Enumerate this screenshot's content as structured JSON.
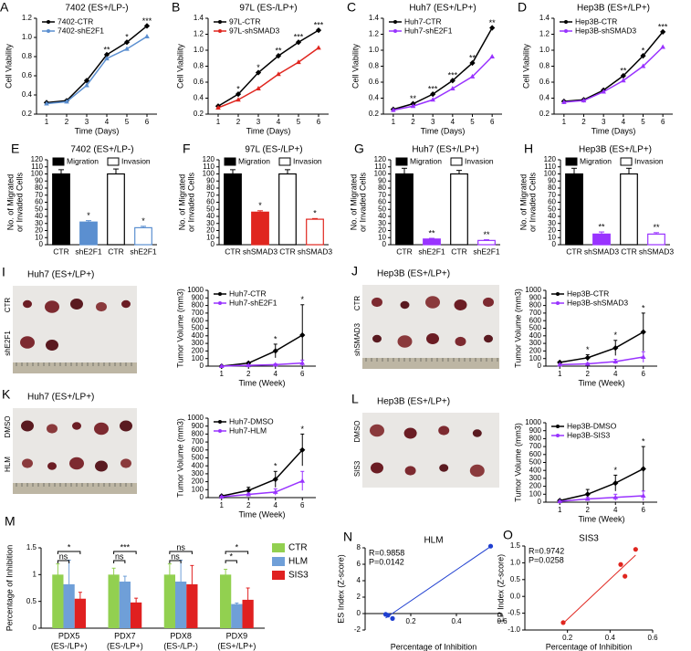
{
  "chart_data": [
    {
      "type": "line",
      "panel": "A",
      "title": "7402 (ES+/LP-)",
      "xlabel": "Time (Days)",
      "ylabel": "Cell Viability",
      "categories": [
        "1",
        "2",
        "3",
        "4",
        "5",
        "6"
      ],
      "ylim": [
        0.2,
        1.2
      ],
      "yticks": [
        0.2,
        0.4,
        0.6,
        0.8,
        {
          "value": 1,
          "label": "1.0"
        },
        1.2
      ],
      "series": [
        {
          "name": "7402-CTR",
          "color": "#000000",
          "values": [
            0.32,
            0.34,
            0.55,
            0.82,
            0.95,
            1.12
          ]
        },
        {
          "name": "7402-shE2F1",
          "color": "#5b8fd0",
          "values": [
            0.31,
            0.33,
            0.5,
            0.78,
            0.88,
            1.01
          ]
        }
      ],
      "annotations": [
        null,
        null,
        null,
        "**",
        "*",
        "***"
      ]
    },
    {
      "type": "line",
      "panel": "B",
      "title": "97L (ES-/LP+)",
      "xlabel": "Time (Days)",
      "ylabel": "Cell Viability",
      "categories": [
        "1",
        "2",
        "3",
        "4",
        "5",
        "6"
      ],
      "ylim": [
        0.2,
        1.4
      ],
      "yticks": [
        0.2,
        0.4,
        0.6,
        0.8,
        {
          "value": 1,
          "label": "1.0"
        },
        1.2,
        1.4
      ],
      "series": [
        {
          "name": "97L-CTR",
          "color": "#000000",
          "values": [
            0.3,
            0.45,
            0.72,
            0.93,
            1.1,
            1.25
          ]
        },
        {
          "name": "97L-shSMAD3",
          "color": "#e0261f",
          "values": [
            0.28,
            0.38,
            0.52,
            0.7,
            0.85,
            1.03
          ]
        }
      ],
      "annotations": [
        null,
        "*",
        "*",
        "**",
        "***",
        "***"
      ]
    },
    {
      "type": "line",
      "panel": "C",
      "title": "Huh7 (ES+/LP+)",
      "xlabel": "Time (Days)",
      "ylabel": "Cell Viability",
      "categories": [
        "1",
        "2",
        "3",
        "4",
        "5",
        "6"
      ],
      "ylim": [
        0.2,
        1.4
      ],
      "yticks": [
        0.2,
        0.4,
        0.6,
        0.8,
        {
          "value": 1,
          "label": "1.0"
        },
        1.2,
        1.4
      ],
      "series": [
        {
          "name": "Huh7-CTR",
          "color": "#000000",
          "values": [
            0.26,
            0.33,
            0.45,
            0.62,
            0.84,
            1.28
          ]
        },
        {
          "name": "Huh7-shE2F1",
          "color": "#9933ff",
          "values": [
            0.25,
            0.3,
            0.38,
            0.52,
            0.67,
            0.92
          ]
        }
      ],
      "annotations": [
        null,
        "**",
        "***",
        "***",
        "**",
        "**"
      ]
    },
    {
      "type": "line",
      "panel": "D",
      "title": "Hep3B (ES+/LP+)",
      "xlabel": "Time (Days)",
      "ylabel": "Cell Viability",
      "categories": [
        "1",
        "2",
        "3",
        "4",
        "5",
        "6"
      ],
      "ylim": [
        0.2,
        1.4
      ],
      "yticks": [
        0.2,
        0.4,
        0.6,
        0.8,
        {
          "value": 1,
          "label": "1.0"
        },
        1.2,
        1.4
      ],
      "series": [
        {
          "name": "Hep3B-CTR",
          "color": "#000000",
          "values": [
            0.36,
            0.38,
            0.5,
            0.68,
            0.93,
            1.23
          ]
        },
        {
          "name": "Hep3B-shSMAD3",
          "color": "#9933ff",
          "values": [
            0.35,
            0.37,
            0.48,
            0.62,
            0.8,
            1.04
          ]
        }
      ],
      "annotations": [
        null,
        null,
        null,
        "**",
        "*",
        "***"
      ]
    },
    {
      "type": "bar",
      "panel": "E",
      "title": "7402 (ES+/LP-)",
      "ylabel": [
        "No. of Migrated",
        "or Invaded Cells"
      ],
      "ylim": [
        0,
        120
      ],
      "yticks": [
        0,
        10,
        20,
        30,
        40,
        50,
        60,
        70,
        80,
        90,
        100,
        110,
        120
      ],
      "colors": [
        "#000000",
        "#5b8fd0"
      ],
      "series": [
        {
          "name": "Migration",
          "categories": [
            "CTR",
            "shE2F1"
          ],
          "values": [
            100,
            32
          ],
          "errors": [
            6,
            2
          ],
          "annotations": [
            null,
            "*"
          ]
        },
        {
          "name": "Invasion",
          "categories": [
            "CTR",
            "shE2F1"
          ],
          "values": [
            100,
            24
          ],
          "errors": [
            7,
            2
          ],
          "annotations": [
            null,
            "*"
          ]
        }
      ]
    },
    {
      "type": "bar",
      "panel": "F",
      "title": "97L (ES-/LP+)",
      "ylabel": [
        "No. of Migrated",
        "or Invaded Cells"
      ],
      "ylim": [
        0,
        120
      ],
      "yticks": [
        0,
        10,
        20,
        30,
        40,
        50,
        60,
        70,
        80,
        90,
        100,
        110,
        120
      ],
      "colors": [
        "#000000",
        "#e0261f"
      ],
      "series": [
        {
          "name": "Migration",
          "categories": [
            "CTR",
            "shSMAD3"
          ],
          "values": [
            100,
            46
          ],
          "errors": [
            6,
            2
          ],
          "annotations": [
            null,
            "*"
          ]
        },
        {
          "name": "Invasion",
          "categories": [
            "CTR",
            "shSMAD3"
          ],
          "values": [
            100,
            36
          ],
          "errors": [
            6,
            1
          ],
          "annotations": [
            null,
            "*"
          ]
        }
      ]
    },
    {
      "type": "bar",
      "panel": "G",
      "title": "Huh7 (ES+/LP+)",
      "ylabel": [
        "No. of Migrated",
        "or Invaded Cells"
      ],
      "ylim": [
        0,
        120
      ],
      "yticks": [
        0,
        10,
        20,
        30,
        40,
        50,
        60,
        70,
        80,
        90,
        100,
        110,
        120
      ],
      "colors": [
        "#000000",
        "#9933ff"
      ],
      "series": [
        {
          "name": "Migration",
          "categories": [
            "CTR",
            "shE2F1"
          ],
          "values": [
            100,
            8
          ],
          "errors": [
            8,
            1
          ],
          "annotations": [
            null,
            "**"
          ]
        },
        {
          "name": "Invasion",
          "categories": [
            "CTR",
            "shE2F1"
          ],
          "values": [
            100,
            6
          ],
          "errors": [
            5,
            1
          ],
          "annotations": [
            null,
            "**"
          ]
        }
      ]
    },
    {
      "type": "bar",
      "panel": "H",
      "title": "Hep3B (ES+/LP+)",
      "ylabel": [
        "No. of Migrated",
        "or Invaded Cells"
      ],
      "ylim": [
        0,
        120
      ],
      "yticks": [
        0,
        10,
        20,
        30,
        40,
        50,
        60,
        70,
        80,
        90,
        100,
        110,
        120
      ],
      "colors": [
        "#000000",
        "#9933ff"
      ],
      "series": [
        {
          "name": "Migration",
          "categories": [
            "CTR",
            "shSMAD3"
          ],
          "values": [
            100,
            15
          ],
          "errors": [
            8,
            3
          ],
          "annotations": [
            null,
            "**"
          ]
        },
        {
          "name": "Invasion",
          "categories": [
            "CTR",
            "shSMAD3"
          ],
          "values": [
            100,
            15
          ],
          "errors": [
            8,
            2
          ],
          "annotations": [
            null,
            "**"
          ]
        }
      ]
    },
    {
      "type": "line",
      "xlabel": "Time (Week)",
      "ylabel": "Tumor Volume (mm3)",
      "categories": [
        "1",
        "2",
        "4",
        "6"
      ],
      "ylim": [
        0,
        1000
      ],
      "yticks": [
        0,
        100,
        200,
        300,
        400,
        500,
        600,
        700,
        800,
        900,
        1000
      ],
      "series": [
        {
          "name": "Huh7-CTR",
          "color": "#000000",
          "values": [
            0,
            40,
            200,
            410
          ],
          "errors": [
            0,
            10,
            90,
            400
          ]
        },
        {
          "name": "Huh7-shE2F1",
          "color": "#9933ff",
          "values": [
            0,
            10,
            20,
            40
          ],
          "errors": [
            0,
            5,
            10,
            40
          ]
        }
      ],
      "annotations": [
        null,
        null,
        "*",
        "*"
      ]
    },
    {
      "type": "line",
      "xlabel": "Time (Week)",
      "ylabel": "Tumor Volume (mm3)",
      "categories": [
        "1",
        "2",
        "4",
        "6"
      ],
      "ylim": [
        0,
        1000
      ],
      "yticks": [
        0,
        100,
        200,
        300,
        400,
        500,
        600,
        700,
        800,
        900,
        1000
      ],
      "series": [
        {
          "name": "Hep3B-CTR",
          "color": "#000000",
          "values": [
            50,
            110,
            240,
            450
          ],
          "errors": [
            10,
            40,
            100,
            250
          ]
        },
        {
          "name": "Hep3B-shSMAD3",
          "color": "#9933ff",
          "values": [
            20,
            30,
            60,
            120
          ],
          "errors": [
            5,
            10,
            30,
            70
          ]
        }
      ],
      "annotations": [
        null,
        "*",
        "*",
        "*"
      ]
    },
    {
      "type": "line",
      "xlabel": "Time (Week)",
      "ylabel": "Tumor Volume (mm3)",
      "categories": [
        "1",
        "2",
        "4",
        "6"
      ],
      "ylim": [
        0,
        1000
      ],
      "yticks": [
        0,
        100,
        200,
        300,
        400,
        500,
        600,
        700,
        800,
        900,
        1000
      ],
      "series": [
        {
          "name": "Huh7-DMSO",
          "color": "#000000",
          "values": [
            20,
            90,
            230,
            600
          ],
          "errors": [
            10,
            40,
            100,
            200
          ]
        },
        {
          "name": "Huh7-HLM",
          "color": "#9933ff",
          "values": [
            10,
            40,
            70,
            210
          ],
          "errors": [
            5,
            15,
            40,
            120
          ]
        }
      ],
      "annotations": [
        null,
        null,
        "*",
        "*"
      ]
    },
    {
      "type": "line",
      "xlabel": "Time (Week)",
      "ylabel": "Tumor Volume (mm3)",
      "categories": [
        "1",
        "2",
        "4",
        "6"
      ],
      "ylim": [
        0,
        1000
      ],
      "yticks": [
        0,
        100,
        200,
        300,
        400,
        500,
        600,
        700,
        800,
        900,
        1000
      ],
      "series": [
        {
          "name": "Hep3B-DMSO",
          "color": "#000000",
          "values": [
            20,
            100,
            240,
            420
          ],
          "errors": [
            10,
            60,
            100,
            280
          ]
        },
        {
          "name": "Hep3B-SIS3",
          "color": "#9933ff",
          "values": [
            10,
            40,
            60,
            80
          ],
          "errors": [
            5,
            20,
            40,
            60
          ]
        }
      ],
      "annotations": [
        null,
        null,
        "*",
        "*"
      ]
    },
    {
      "type": "groupedbar",
      "panel": "M",
      "ylabel": "Percentage of Inhibition",
      "categories": [
        "PDX5",
        "PDX7",
        "PDX8",
        "PDX9"
      ],
      "subcategories": [
        "(ES-/LP+)",
        "(ES-/LP+)",
        "(ES-/LP-)",
        "(ES+/LP+)"
      ],
      "ylim": [
        0,
        1.5
      ],
      "yticks": [
        0,
        0.5,
        1,
        1.5
      ],
      "series": [
        {
          "name": "CTR",
          "color": "#92d050",
          "values": [
            1.0,
            1.0,
            1.0,
            1.0
          ],
          "errors": [
            0.2,
            0.12,
            0.2,
            0.1
          ]
        },
        {
          "name": "HLM",
          "color": "#6f9fd8",
          "values": [
            0.82,
            0.87,
            0.87,
            0.45
          ],
          "errors": [
            0.45,
            0.1,
            0.4,
            0.02
          ]
        },
        {
          "name": "SIS3",
          "color": "#e02020",
          "values": [
            0.55,
            0.48,
            0.82,
            0.53
          ],
          "errors": [
            0.12,
            0.08,
            0.35,
            0.22
          ]
        }
      ],
      "significance": [
        [
          "ns",
          "*"
        ],
        [
          "ns",
          "***"
        ],
        [
          "ns",
          "ns"
        ],
        [
          "*",
          "*"
        ]
      ]
    },
    {
      "type": "scatter",
      "panel": "N",
      "title": "HLM",
      "xlabel": "Percentage of Inhibition",
      "ylabel": "ES Index (Z-score)",
      "x": [
        0.09,
        0.1,
        0.12,
        0.55
      ],
      "y": [
        -0.1,
        -0.2,
        -0.6,
        8.2
      ],
      "color": "#1f3fd0",
      "xlim": [
        0,
        0.6
      ],
      "xticks": [
        0.2,
        0.4,
        0.6
      ],
      "ylim": [
        -2,
        8
      ],
      "yticks": [
        -2,
        0,
        2,
        4,
        6,
        8
      ],
      "xaxis_at": 0,
      "annotations": [
        "R=0.9858",
        "P=0.0142"
      ]
    },
    {
      "type": "scatter",
      "panel": "O",
      "title": "SIS3",
      "xlabel": "Percentage of Inhibition",
      "ylabel": "LP Index (Z-score)",
      "x": [
        0.18,
        0.45,
        0.47,
        0.52
      ],
      "y": [
        -0.78,
        0.95,
        0.6,
        1.4
      ],
      "color": "#e0261f",
      "xlim": [
        0,
        0.6
      ],
      "xticks": [
        0.2,
        0.4,
        0.6
      ],
      "ylim": [
        -1,
        1.5
      ],
      "yticks": [
        {
          "value": -1,
          "label": "-1.0"
        },
        -0.5,
        {
          "value": 0,
          "label": "0.0"
        },
        0.5,
        {
          "value": 1,
          "label": "1.0"
        },
        1.5
      ],
      "annotations": [
        "R=0.9742",
        "P=0.0258"
      ]
    }
  ],
  "photos": [
    {
      "panel": "I",
      "title": "Huh7 (ES+/LP+)",
      "rows": [
        "CTR",
        "shE2F1"
      ]
    },
    {
      "panel": "J",
      "title": "Hep3B (ES+/LP+)",
      "rows": [
        "CTR",
        "shSMAD3"
      ]
    },
    {
      "panel": "K",
      "title": "Huh7 (ES+/LP+)",
      "rows": [
        "DMSO",
        "HLM"
      ]
    },
    {
      "panel": "L",
      "title": "Hep3B (ES+/LP+)",
      "rows": [
        "DMSO",
        "SIS3"
      ]
    }
  ]
}
